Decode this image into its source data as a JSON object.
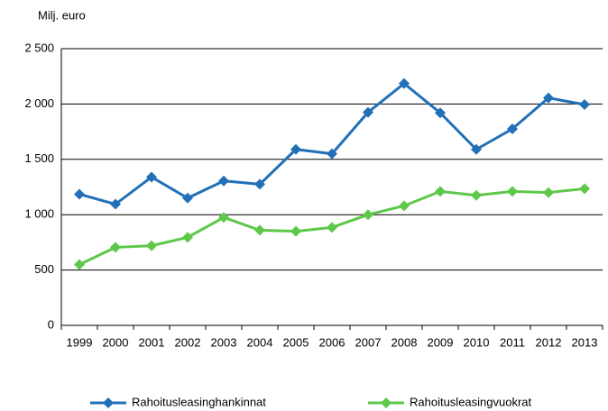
{
  "chart_data": {
    "type": "line",
    "y_label": "Milj. euro",
    "categories": [
      "1999",
      "2000",
      "2001",
      "2002",
      "2003",
      "2004",
      "2005",
      "2006",
      "2007",
      "2008",
      "2009",
      "2010",
      "2011",
      "2012",
      "2013"
    ],
    "series": [
      {
        "name": "Rahoitusleasinghankinnat",
        "color": "#2270b8",
        "values": [
          1185,
          1095,
          1340,
          1150,
          1305,
          1275,
          1590,
          1550,
          1925,
          2185,
          1920,
          1590,
          1775,
          2055,
          1995
        ]
      },
      {
        "name": "Rahoitusleasingvuokrat",
        "color": "#5ec84a",
        "values": [
          550,
          705,
          720,
          795,
          975,
          860,
          850,
          885,
          1000,
          1080,
          1210,
          1175,
          1210,
          1200,
          1235
        ]
      }
    ],
    "ylim": [
      0,
      2500
    ],
    "yticks": [
      0,
      500,
      {
        "value": 1000,
        "label": "1 000"
      },
      {
        "value": 1500,
        "label": "1 500"
      },
      {
        "value": 2000,
        "label": "2 000"
      },
      {
        "value": 2500,
        "label": "2 500"
      }
    ],
    "grid": true,
    "legend": "bottom"
  }
}
